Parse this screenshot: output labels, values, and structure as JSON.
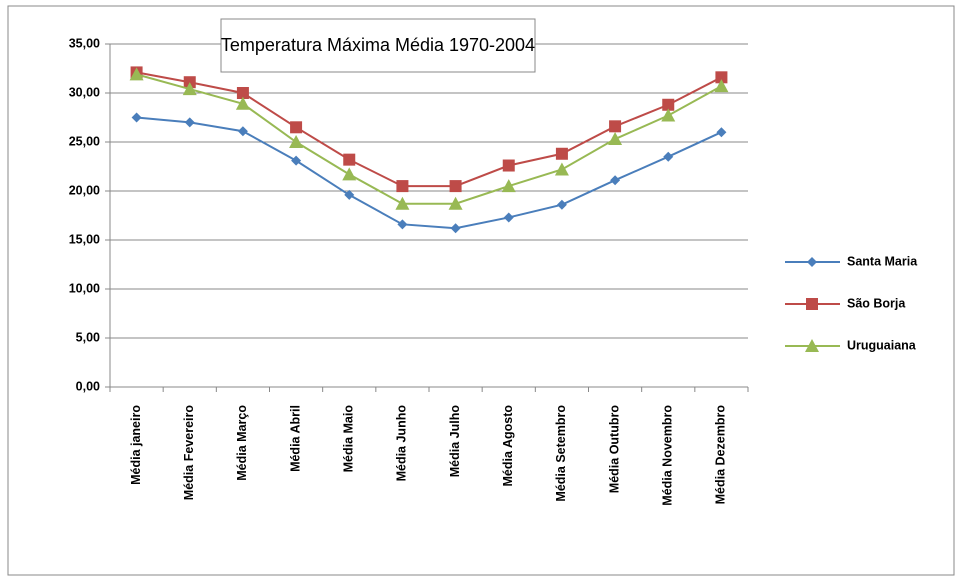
{
  "chart_data": {
    "type": "line",
    "title": "Temperatura Máxima Média  1970-2004",
    "categories": [
      "Média janeiro",
      "Média Fevereiro",
      "Média Março",
      "Média Abril",
      "Média Maio",
      "Média Junho",
      "Média Julho",
      "Média Agosto",
      "Média Setembro",
      "Média Outubro",
      "Média Novembro",
      "Média Dezembro"
    ],
    "series": [
      {
        "name": "Santa Maria",
        "color": "#4a7ebb",
        "marker": "diamond",
        "values": [
          27.5,
          27.0,
          26.1,
          23.1,
          19.6,
          16.6,
          16.2,
          17.3,
          18.6,
          21.1,
          23.5,
          26.0
        ]
      },
      {
        "name": "São Borja",
        "color": "#be4b48",
        "marker": "square",
        "values": [
          32.1,
          31.1,
          30.0,
          26.5,
          23.2,
          20.5,
          20.5,
          22.6,
          23.8,
          26.6,
          28.8,
          31.6
        ]
      },
      {
        "name": "Uruguaiana",
        "color": "#98b954",
        "marker": "triangle",
        "values": [
          31.9,
          30.4,
          28.9,
          25.0,
          21.7,
          18.7,
          18.7,
          20.5,
          22.2,
          25.3,
          27.7,
          30.7
        ]
      }
    ],
    "ylim": [
      0,
      35
    ],
    "yticks": [
      {
        "value": 0,
        "label": "0,00"
      },
      {
        "value": 5,
        "label": "5,00"
      },
      {
        "value": 10,
        "label": "10,00"
      },
      {
        "value": 15,
        "label": "15,00"
      },
      {
        "value": 20,
        "label": "20,00"
      },
      {
        "value": 25,
        "label": "25,00"
      },
      {
        "value": 30,
        "label": "30,00"
      },
      {
        "value": 35,
        "label": "35,00"
      }
    ],
    "grid": true,
    "legend": "right"
  }
}
